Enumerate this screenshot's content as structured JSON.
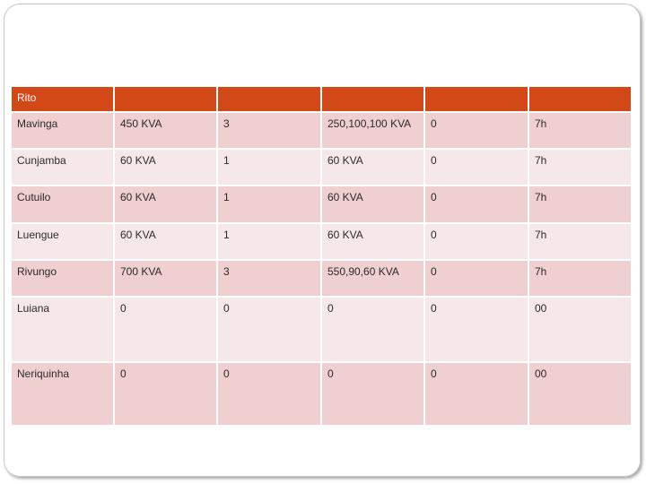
{
  "table": {
    "header": [
      "Rito",
      "",
      "",
      "",
      "",
      ""
    ],
    "rows": [
      [
        "Mavinga",
        "450 KVA",
        "3",
        "250,100,100 KVA",
        "0",
        "7h"
      ],
      [
        "Cunjamba",
        "60 KVA",
        "1",
        "60 KVA",
        "0",
        "7h"
      ],
      [
        "Cutuilo",
        "60 KVA",
        "1",
        "60 KVA",
        "0",
        "7h"
      ],
      [
        "Luengue",
        "60 KVA",
        "1",
        "60 KVA",
        "0",
        "7h"
      ],
      [
        "Rivungo",
        "700 KVA",
        "3",
        "550,90,60 KVA",
        "0",
        "7h"
      ],
      [
        "Luiana",
        "0",
        "0",
        "0",
        "0",
        "00"
      ],
      [
        "Neriquinha",
        "0",
        "0",
        "0",
        "0",
        "00"
      ]
    ]
  },
  "colors": {
    "header_bg": "#d34817",
    "row_dark": "#efcfcf",
    "row_light": "#f6e8e8"
  }
}
